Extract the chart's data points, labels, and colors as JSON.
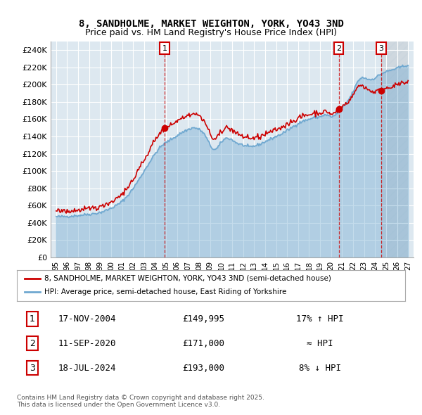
{
  "title1": "8, SANDHOLME, MARKET WEIGHTON, YORK, YO43 3ND",
  "title2": "Price paid vs. HM Land Registry's House Price Index (HPI)",
  "legend1": "8, SANDHOLME, MARKET WEIGHTON, YORK, YO43 3ND (semi-detached house)",
  "legend2": "HPI: Average price, semi-detached house, East Riding of Yorkshire",
  "footer": "Contains HM Land Registry data © Crown copyright and database right 2025.\nThis data is licensed under the Open Government Licence v3.0.",
  "sale_markers": [
    {
      "num": 1,
      "date": "17-NOV-2004",
      "price": 149995,
      "hpi_rel": "17% ↑ HPI",
      "x": 2004.88
    },
    {
      "num": 2,
      "date": "11-SEP-2020",
      "price": 171000,
      "hpi_rel": "≈ HPI",
      "x": 2020.69
    },
    {
      "num": 3,
      "date": "18-JUL-2024",
      "price": 193000,
      "hpi_rel": "8% ↓ HPI",
      "x": 2024.54
    }
  ],
  "xlim": [
    1994.5,
    2027.5
  ],
  "ylim": [
    0,
    250000
  ],
  "yticks": [
    0,
    20000,
    40000,
    60000,
    80000,
    100000,
    120000,
    140000,
    160000,
    180000,
    200000,
    220000,
    240000
  ],
  "ytick_labels": [
    "£0",
    "£20K",
    "£40K",
    "£60K",
    "£80K",
    "£100K",
    "£120K",
    "£140K",
    "£160K",
    "£180K",
    "£200K",
    "£220K",
    "£240K"
  ],
  "xtick_years": [
    1995,
    1996,
    1997,
    1998,
    1999,
    2000,
    2001,
    2002,
    2003,
    2004,
    2005,
    2006,
    2007,
    2008,
    2009,
    2010,
    2011,
    2012,
    2013,
    2014,
    2015,
    2016,
    2017,
    2018,
    2019,
    2020,
    2021,
    2022,
    2023,
    2024,
    2025,
    2026,
    2027
  ],
  "bg_color": "#dde8f0",
  "grid_color": "#ffffff",
  "hpi_color": "#6fa8d0",
  "property_color": "#cc0000",
  "hatch_color": "#b0c8dc"
}
